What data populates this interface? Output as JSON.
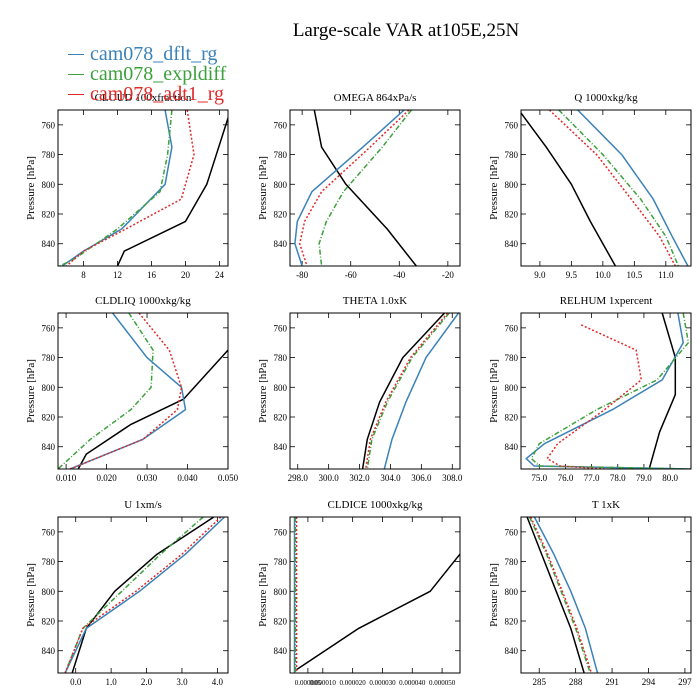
{
  "title": "Large-scale VAR at105E,25N",
  "legend": [
    {
      "name": "cam078_dflt_rg",
      "color": "#3b82b8"
    },
    {
      "name": "cam078_expldiff",
      "color": "#3ca03c"
    },
    {
      "name": "cam078_adt1_rg",
      "color": "#e02a2a"
    }
  ],
  "chart_data": [
    {
      "type": "line",
      "title": "CLOUD 100xfraction",
      "ylabel": "Pressure [hPa]",
      "ylim": [
        855,
        750
      ],
      "xlim": [
        5,
        25
      ],
      "xticks": [
        8,
        12,
        16,
        20,
        24
      ],
      "xtick_labels": [
        "8",
        "12",
        "16",
        "20",
        "24"
      ],
      "yticks": [
        760,
        780,
        800,
        820,
        840
      ],
      "series": [
        {
          "color": "#000000",
          "style": "solid",
          "x": [
            25.3,
            22.5,
            20.0,
            12.8,
            12.0
          ],
          "y": [
            750,
            800,
            825,
            845,
            855
          ]
        },
        {
          "color": "#3b82b8",
          "style": "solid",
          "x": [
            17.6,
            18.4,
            17.6,
            12.5,
            8.0,
            5.5
          ],
          "y": [
            750,
            775,
            800,
            830,
            845,
            855
          ]
        },
        {
          "color": "#3ca03c",
          "style": "dashed",
          "x": [
            18.4,
            17.9,
            17.0,
            12.0,
            7.0,
            5.2
          ],
          "y": [
            750,
            780,
            805,
            830,
            850,
            855
          ]
        },
        {
          "color": "#e02a2a",
          "style": "dotted",
          "x": [
            20.2,
            21.0,
            19.5,
            13.0,
            8.0,
            6.0
          ],
          "y": [
            750,
            780,
            810,
            830,
            845,
            855
          ]
        }
      ]
    },
    {
      "type": "line",
      "title": "OMEGA 864xPa/s",
      "ylabel": "Pressure [hPa]",
      "ylim": [
        855,
        750
      ],
      "xlim": [
        -85,
        -15
      ],
      "xticks": [
        -80,
        -60,
        -40,
        -20
      ],
      "xtick_labels": [
        "-80",
        "-60",
        "-40",
        "-20"
      ],
      "yticks": [
        760,
        780,
        800,
        820,
        840
      ],
      "series": [
        {
          "color": "#000000",
          "style": "solid",
          "x": [
            -75,
            -72,
            -62,
            -45,
            -33
          ],
          "y": [
            750,
            775,
            800,
            830,
            855
          ]
        },
        {
          "color": "#3b82b8",
          "style": "solid",
          "x": [
            -38,
            -55,
            -76,
            -82,
            -83,
            -80
          ],
          "y": [
            750,
            775,
            805,
            825,
            840,
            855
          ]
        },
        {
          "color": "#3ca03c",
          "style": "dashed",
          "x": [
            -35,
            -47,
            -63,
            -70,
            -73,
            -72
          ],
          "y": [
            750,
            775,
            805,
            825,
            840,
            855
          ]
        },
        {
          "color": "#e02a2a",
          "style": "dotted",
          "x": [
            -36,
            -52,
            -72,
            -79,
            -81,
            -78
          ],
          "y": [
            750,
            775,
            805,
            825,
            840,
            855
          ]
        }
      ]
    },
    {
      "type": "line",
      "title": "Q 1000xkg/kg",
      "ylabel": "Pressure [hPa]",
      "ylim": [
        855,
        750
      ],
      "xlim": [
        8.7,
        11.4
      ],
      "xticks": [
        9.0,
        9.5,
        10.0,
        10.5,
        11.0
      ],
      "xtick_labels": [
        "9.0",
        "9.5",
        "10.0",
        "10.5",
        "11.0"
      ],
      "yticks": [
        760,
        780,
        800,
        820,
        840
      ],
      "series": [
        {
          "color": "#000000",
          "style": "solid",
          "x": [
            8.7,
            9.1,
            9.5,
            9.8,
            10.2
          ],
          "y": [
            752,
            775,
            800,
            825,
            855
          ]
        },
        {
          "color": "#3b82b8",
          "style": "solid",
          "x": [
            9.6,
            10.3,
            10.8,
            11.1,
            11.35
          ],
          "y": [
            750,
            780,
            810,
            835,
            855
          ]
        },
        {
          "color": "#3ca03c",
          "style": "dashed",
          "x": [
            9.3,
            10.0,
            10.6,
            11.0,
            11.2
          ],
          "y": [
            750,
            780,
            810,
            835,
            855
          ]
        },
        {
          "color": "#e02a2a",
          "style": "dotted",
          "x": [
            9.15,
            9.9,
            10.45,
            10.9,
            11.15
          ],
          "y": [
            750,
            780,
            810,
            835,
            855
          ]
        }
      ]
    },
    {
      "type": "line",
      "title": "CLDLIQ 1000xkg/kg",
      "ylabel": "Pressure [hPa]",
      "ylim": [
        855,
        750
      ],
      "xlim": [
        0.008,
        0.05
      ],
      "xticks": [
        0.01,
        0.02,
        0.03,
        0.04,
        0.05
      ],
      "xtick_labels": [
        "0.010",
        "0.020",
        "0.030",
        "0.040",
        "0.050"
      ],
      "yticks": [
        760,
        780,
        800,
        820,
        840
      ],
      "series": [
        {
          "color": "#000000",
          "style": "solid",
          "x": [
            0.05,
            0.039,
            0.026,
            0.015,
            0.013
          ],
          "y": [
            775,
            808,
            825,
            845,
            855
          ]
        },
        {
          "color": "#3b82b8",
          "style": "solid",
          "x": [
            0.0215,
            0.03,
            0.0385,
            0.0395,
            0.029,
            0.011
          ],
          "y": [
            750,
            780,
            800,
            815,
            835,
            855
          ]
        },
        {
          "color": "#3ca03c",
          "style": "dashed",
          "x": [
            0.0255,
            0.0315,
            0.031,
            0.026,
            0.016,
            0.008
          ],
          "y": [
            750,
            775,
            800,
            815,
            835,
            855
          ]
        },
        {
          "color": "#e02a2a",
          "style": "dotted",
          "x": [
            0.028,
            0.0355,
            0.0385,
            0.0375,
            0.029,
            0.011
          ],
          "y": [
            750,
            775,
            800,
            815,
            835,
            855
          ]
        }
      ]
    },
    {
      "type": "line",
      "title": "THETA 1.0xK",
      "ylabel": "Pressure [hPa]",
      "ylim": [
        855,
        750
      ],
      "xlim": [
        297.5,
        308.5
      ],
      "xticks": [
        298,
        300,
        302,
        304,
        306,
        308
      ],
      "xtick_labels": [
        "298.0",
        "300.0",
        "302.0",
        "304.0",
        "306.0",
        "308.0"
      ],
      "yticks": [
        760,
        780,
        800,
        820,
        840
      ],
      "series": [
        {
          "color": "#000000",
          "style": "solid",
          "x": [
            307.5,
            304.8,
            303.3,
            302.5,
            302.2
          ],
          "y": [
            750,
            780,
            810,
            835,
            855
          ]
        },
        {
          "color": "#3b82b8",
          "style": "solid",
          "x": [
            308.4,
            306.3,
            305.0,
            304.1,
            303.6
          ],
          "y": [
            750,
            780,
            810,
            835,
            855
          ]
        },
        {
          "color": "#3ca03c",
          "style": "dashed",
          "x": [
            307.8,
            305.4,
            303.8,
            302.8,
            302.5
          ],
          "y": [
            750,
            780,
            810,
            835,
            855
          ]
        },
        {
          "color": "#e02a2a",
          "style": "dotted",
          "x": [
            307.7,
            305.3,
            303.7,
            302.7,
            302.4
          ],
          "y": [
            750,
            780,
            810,
            835,
            855
          ]
        }
      ]
    },
    {
      "type": "line",
      "title": "RELHUM 1xpercent",
      "ylabel": "Pressure [hPa]",
      "ylim": [
        855,
        750
      ],
      "xlim": [
        74.3,
        80.8
      ],
      "xticks": [
        75,
        76,
        77,
        78,
        79,
        80
      ],
      "xtick_labels": [
        "75.0",
        "76.0",
        "77.0",
        "78.0",
        "79.0",
        "80.0"
      ],
      "yticks": [
        760,
        780,
        800,
        820,
        840
      ],
      "series": [
        {
          "color": "#000000",
          "style": "solid",
          "x": [
            79.7,
            80.2,
            80.2,
            79.6,
            79.2
          ],
          "y": [
            750,
            780,
            805,
            830,
            855
          ]
        },
        {
          "color": "#3b82b8",
          "style": "solid",
          "x": [
            80.3,
            80.5,
            79.7,
            77.8,
            75.2,
            74.5,
            74.8,
            80.8
          ],
          "y": [
            750,
            770,
            795,
            815,
            838,
            848,
            853,
            855
          ]
        },
        {
          "color": "#3ca03c",
          "style": "dashed",
          "x": [
            80.5,
            80.7,
            79.5,
            77.2,
            75.0,
            74.7,
            75.0,
            80.8
          ],
          "y": [
            750,
            770,
            795,
            815,
            838,
            848,
            853,
            855
          ]
        },
        {
          "color": "#e02a2a",
          "style": "dotted",
          "x": [
            76.6,
            78.7,
            78.9,
            77.5,
            75.7,
            75.3,
            75.8,
            77.5
          ],
          "y": [
            758,
            775,
            795,
            815,
            838,
            848,
            853,
            855
          ]
        }
      ]
    },
    {
      "type": "line",
      "title": "U 1xm/s",
      "ylabel": "Pressure [hPa]",
      "ylim": [
        855,
        750
      ],
      "xlim": [
        -0.5,
        4.3
      ],
      "xticks": [
        0,
        1,
        2,
        3,
        4
      ],
      "xtick_labels": [
        "0.0",
        "1.0",
        "2.0",
        "3.0",
        "4.0"
      ],
      "yticks": [
        760,
        780,
        800,
        820,
        840
      ],
      "series": [
        {
          "color": "#000000",
          "style": "solid",
          "x": [
            3.9,
            2.3,
            1.1,
            0.3,
            -0.1
          ],
          "y": [
            750,
            775,
            800,
            825,
            855
          ]
        },
        {
          "color": "#3b82b8",
          "style": "solid",
          "x": [
            4.2,
            3.1,
            1.8,
            0.3,
            -0.3
          ],
          "y": [
            750,
            775,
            800,
            825,
            855
          ]
        },
        {
          "color": "#3ca03c",
          "style": "dashed",
          "x": [
            3.6,
            2.4,
            1.3,
            0.2,
            -0.3
          ],
          "y": [
            750,
            775,
            800,
            825,
            855
          ]
        },
        {
          "color": "#e02a2a",
          "style": "dotted",
          "x": [
            4.1,
            3.0,
            1.7,
            0.2,
            -0.3
          ],
          "y": [
            750,
            775,
            800,
            825,
            855
          ]
        }
      ]
    },
    {
      "type": "line",
      "title": "CLDICE 1000xkg/kg",
      "ylabel": "Pressure [hPa]",
      "ylim": [
        855,
        750
      ],
      "xlim": [
        -1e-06,
        5.6e-05
      ],
      "xticks": [
        5e-06,
        1e-05,
        2e-05,
        3e-05,
        4e-05,
        5e-05
      ],
      "xtick_labels": [
        "0.000005",
        "0.000010",
        "0.000020",
        "0.000030",
        "0.000040",
        "0.000050"
      ],
      "yticks": [
        760,
        780,
        800,
        820,
        840
      ],
      "series": [
        {
          "color": "#000000",
          "style": "solid",
          "x": [
            5.6e-05,
            4.6e-05,
            2.2e-05,
            1e-06
          ],
          "y": [
            775,
            800,
            825,
            853
          ]
        },
        {
          "color": "#3b82b8",
          "style": "solid",
          "x": [
            5e-07,
            5e-07
          ],
          "y": [
            750,
            855
          ]
        },
        {
          "color": "#3ca03c",
          "style": "dashed",
          "x": [
            8e-07,
            8e-07
          ],
          "y": [
            750,
            855
          ]
        },
        {
          "color": "#e02a2a",
          "style": "dotted",
          "x": [
            1.2e-06,
            1.2e-06
          ],
          "y": [
            750,
            855
          ]
        }
      ]
    },
    {
      "type": "line",
      "title": "T 1xK",
      "ylabel": "Pressure [hPa]",
      "ylim": [
        855,
        750
      ],
      "xlim": [
        283.5,
        297.5
      ],
      "xticks": [
        285,
        288,
        291,
        294,
        297
      ],
      "xtick_labels": [
        "285",
        "288",
        "291",
        "294",
        "297"
      ],
      "yticks": [
        760,
        780,
        800,
        820,
        840
      ],
      "series": [
        {
          "color": "#000000",
          "style": "solid",
          "x": [
            284.0,
            285.2,
            286.4,
            287.6,
            288.7
          ],
          "y": [
            750,
            775,
            800,
            825,
            855
          ]
        },
        {
          "color": "#3b82b8",
          "style": "solid",
          "x": [
            284.6,
            286.2,
            287.6,
            288.8,
            289.8
          ],
          "y": [
            750,
            775,
            800,
            825,
            855
          ]
        },
        {
          "color": "#3ca03c",
          "style": "dashed",
          "x": [
            284.2,
            285.6,
            286.8,
            288.0,
            289.2
          ],
          "y": [
            750,
            775,
            800,
            825,
            855
          ]
        },
        {
          "color": "#e02a2a",
          "style": "dotted",
          "x": [
            284.3,
            285.7,
            286.9,
            288.1,
            289.3
          ],
          "y": [
            750,
            775,
            800,
            825,
            855
          ]
        }
      ]
    }
  ]
}
